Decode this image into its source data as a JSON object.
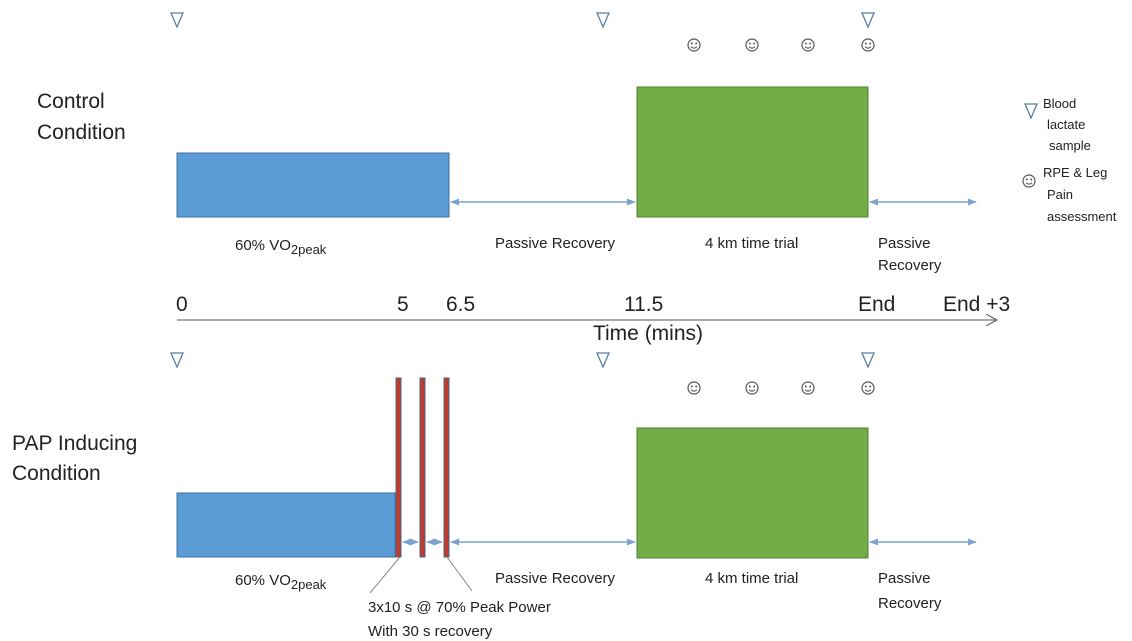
{
  "conditions": [
    {
      "label_lines": [
        "Control",
        "Condition"
      ],
      "warmup": {
        "main": "60% VO",
        "sub": "2peak"
      },
      "recovery": "Passive Recovery",
      "trial": "4 km time trial",
      "post": [
        "Passive",
        "Recovery"
      ]
    },
    {
      "label_lines": [
        "PAP Inducing",
        "Condition"
      ],
      "warmup": {
        "main": "60% VO",
        "sub": "2peak"
      },
      "recovery": "Passive Recovery",
      "trial": "4 km time trial",
      "post": [
        "Passive",
        "Recovery"
      ],
      "note": [
        "3x10 s @ 70% Peak Power",
        "With 30 s recovery"
      ]
    }
  ],
  "axis": {
    "ticks": [
      "0",
      "5",
      "6.5",
      "11.5",
      "End",
      "End +3"
    ],
    "title": "Time (mins)"
  },
  "legend": {
    "blood": [
      "Blood",
      "lactate",
      "sample"
    ],
    "rpe": [
      "RPE & Leg",
      "Pain",
      "assessment"
    ]
  }
}
